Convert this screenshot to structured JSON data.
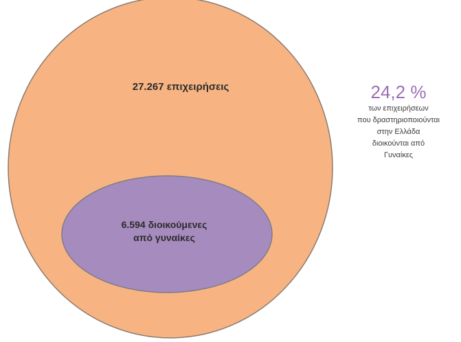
{
  "colors": {
    "outer_fill": "#F7B482",
    "outer_stroke": "#8a7a70",
    "inner_fill": "#A68BBE",
    "inner_stroke": "#7d7d86",
    "percent_text": "#9B6FB6"
  },
  "outer_circle": {
    "label": "27.267 επιχειρήσεις"
  },
  "inner_ellipse": {
    "label_lines": [
      "6.594 διοικούμενες",
      "από γυναίκες"
    ]
  },
  "side_note": {
    "percent": "24,2 %",
    "lines": [
      "των επιχειρήσεων",
      "που δραστηριοποιούνται",
      "στην Ελλάδα",
      "διοικούνται από",
      "Γυναίκες"
    ]
  }
}
